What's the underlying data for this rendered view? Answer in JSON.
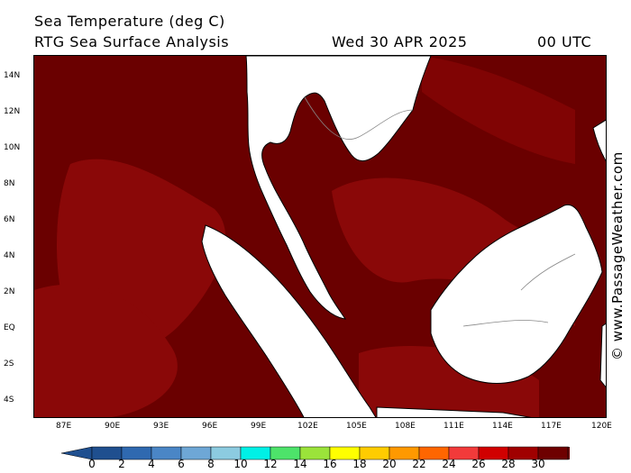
{
  "header": {
    "title": "Sea Temperature (deg C)",
    "subtitle": "RTG Sea Surface Analysis",
    "date": "Wed 30 APR 2025",
    "time": "00 UTC"
  },
  "credit": "© www.PassageWeather.com",
  "axes": {
    "lat_labels": [
      "14N",
      "12N",
      "10N",
      "8N",
      "6N",
      "4N",
      "2N",
      "EQ",
      "2S",
      "4S"
    ],
    "lon_labels": [
      "87E",
      "90E",
      "93E",
      "96E",
      "99E",
      "102E",
      "105E",
      "108E",
      "111E",
      "114E",
      "117E",
      "120E"
    ]
  },
  "legend": {
    "labels": [
      "0",
      "2",
      "4",
      "6",
      "8",
      "10",
      "12",
      "14",
      "16",
      "18",
      "20",
      "22",
      "24",
      "26",
      "28",
      "30"
    ],
    "colors": [
      "#1f4f8f",
      "#2f69b0",
      "#4a86c6",
      "#6ea7d6",
      "#8ccbe0",
      "#00f0e6",
      "#4de36a",
      "#9be33a",
      "#ffff00",
      "#ffcc00",
      "#ff9900",
      "#ff6600",
      "#f23a3a",
      "#d10000",
      "#a00000",
      "#6e0000"
    ]
  },
  "colors": {
    "sea_warm": "#8a0808",
    "sea_hot": "#6a0000",
    "land": "#ffffff"
  }
}
